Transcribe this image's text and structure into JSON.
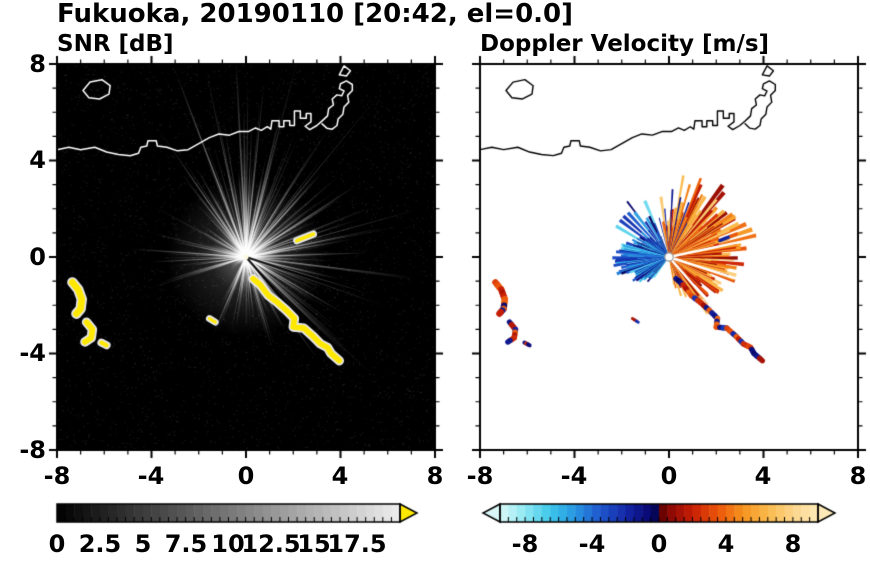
{
  "title": "Fukuoka, 20190110 [20:42, el=0.0]",
  "chart_data": [
    {
      "type": "heatmap",
      "subtype": "radar_ppi",
      "title": "SNR [dB]",
      "xlim": [
        -8,
        8
      ],
      "ylim": [
        -8,
        8
      ],
      "xtick_values": [
        -8,
        -4,
        0,
        4,
        8
      ],
      "ytick_values": [
        8,
        4,
        0,
        -4,
        -8
      ],
      "xtick_labels": [
        "-8",
        "-4",
        "0",
        "4",
        "8"
      ],
      "ytick_labels": [
        "8",
        "4",
        "0",
        "-4",
        "-8"
      ],
      "minor_tick_step": 1,
      "grid": false,
      "background_color": "#000000",
      "radar_center": [
        0,
        0
      ],
      "colorbar": {
        "orientation": "horizontal",
        "range": [
          0,
          20
        ],
        "segment_step": 0.5,
        "tick_values": [
          0,
          2.5,
          5,
          7.5,
          10,
          12.5,
          15,
          17.5
        ],
        "tick_labels": [
          "0",
          "2.5",
          "5",
          "7.5",
          "10",
          "12.5",
          "15",
          "17.5"
        ],
        "colormap": "grayscale",
        "gray_max_level": 238,
        "over_arrow_color": "#ffe800"
      },
      "fan": {
        "bright_sector_deg": [
          -70,
          130
        ],
        "weak_sector_deg": [
          200,
          240
        ],
        "max_radius": 8,
        "shadow_ray_angles_deg": [
          -49,
          -18
        ],
        "fixed_rays": [
          [
            176,
            4.8
          ],
          [
            183,
            4.0
          ],
          [
            168,
            3.2
          ],
          [
            150,
            2.4
          ],
          [
            2,
            5.2
          ],
          [
            12,
            4.4
          ],
          [
            33,
            5.6
          ],
          [
            48,
            4.8
          ],
          [
            75,
            4.4
          ],
          [
            95,
            3.8
          ],
          [
            118,
            3.0
          ],
          [
            -30,
            4.6
          ],
          [
            -55,
            5.2
          ],
          [
            -62,
            3.6
          ],
          [
            286,
            4.0
          ]
        ],
        "strong_echo_color": "#ffe800",
        "echo_halo_color": "#e6e6e6"
      }
    },
    {
      "type": "heatmap",
      "subtype": "radar_ppi",
      "title": "Doppler Velocity [m/s]",
      "xlim": [
        -8,
        8
      ],
      "ylim": [
        -8,
        8
      ],
      "xtick_values": [
        -8,
        -4,
        0,
        4,
        8
      ],
      "ytick_values": [
        8,
        4,
        0,
        -4,
        -8
      ],
      "xtick_labels": [
        "-8",
        "-4",
        "0",
        "4",
        "8"
      ],
      "minor_tick_step": 1,
      "grid": false,
      "background_color": "#ffffff",
      "radar_center": [
        0,
        0
      ],
      "colorbar": {
        "orientation": "horizontal",
        "range": [
          -9.5,
          9.5
        ],
        "segment_step": 0.5,
        "tick_values": [
          -8,
          -4,
          0,
          4,
          8
        ],
        "tick_labels": [
          "-8",
          "-4",
          "0",
          "4",
          "8"
        ],
        "colormap_stops": [
          [
            -9.5,
            "#d9f7f7"
          ],
          [
            -8.0,
            "#8fe8f2"
          ],
          [
            -6.5,
            "#3cc6ea"
          ],
          [
            -5.0,
            "#2896e2"
          ],
          [
            -3.5,
            "#1e55cc"
          ],
          [
            -2.0,
            "#1428a8"
          ],
          [
            -0.75,
            "#0a0a78"
          ],
          [
            -0.05,
            "#05054d"
          ],
          [
            0.05,
            "#5c0000"
          ],
          [
            0.75,
            "#8f0a05"
          ],
          [
            2.0,
            "#c81e05"
          ],
          [
            3.5,
            "#eb550a"
          ],
          [
            5.0,
            "#f5921e"
          ],
          [
            6.5,
            "#fab94b"
          ],
          [
            8.0,
            "#fcd58a"
          ],
          [
            9.5,
            "#fdeab8"
          ]
        ]
      },
      "fan": {
        "warm_sector_deg": [
          -80,
          102
        ],
        "cool_sector_deg": [
          112,
          235
        ],
        "gap_sector_deg": [
          236,
          279
        ],
        "navy_spike_angles_deg": [
          62,
          70,
          79,
          87,
          95,
          104,
          118,
          127
        ],
        "warm_spikes": [
          [
            62,
            3.0
          ],
          [
            68,
            3.6
          ],
          [
            74,
            3.2
          ],
          [
            80,
            3.5
          ],
          [
            45,
            2.8
          ],
          [
            -50,
            2.6
          ],
          [
            -56,
            2.9
          ],
          [
            10,
            3.1
          ]
        ],
        "white_ray_angles_deg": [
          -49,
          -18,
          12
        ],
        "max_radius": 3.8
      }
    }
  ],
  "geometry": {
    "coastlines": [
      [
        [
          -6.9,
          6.9
        ],
        [
          -6.6,
          7.25
        ],
        [
          -6.1,
          7.35
        ],
        [
          -5.75,
          7.1
        ],
        [
          -5.8,
          6.75
        ],
        [
          -6.2,
          6.55
        ],
        [
          -6.65,
          6.6
        ],
        [
          -6.9,
          6.9
        ]
      ],
      [
        [
          -8,
          4.45
        ],
        [
          -7.5,
          4.55
        ],
        [
          -7.0,
          4.45
        ],
        [
          -6.4,
          4.55
        ],
        [
          -5.9,
          4.35
        ],
        [
          -5.4,
          4.25
        ],
        [
          -4.9,
          4.2
        ],
        [
          -4.55,
          4.3
        ],
        [
          -4.45,
          4.55
        ],
        [
          -4.2,
          4.6
        ],
        [
          -4.15,
          4.82
        ],
        [
          -3.8,
          4.82
        ],
        [
          -3.75,
          4.6
        ],
        [
          -3.35,
          4.55
        ],
        [
          -2.9,
          4.4
        ],
        [
          -2.45,
          4.45
        ],
        [
          -2.0,
          4.7
        ],
        [
          -1.55,
          4.95
        ],
        [
          -1.15,
          5.1
        ],
        [
          -0.7,
          5.05
        ],
        [
          -0.3,
          5.2
        ],
        [
          0.1,
          5.2
        ],
        [
          0.4,
          5.35
        ],
        [
          0.65,
          5.25
        ],
        [
          0.9,
          5.4
        ],
        [
          1.05,
          5.3
        ],
        [
          1.1,
          5.65
        ],
        [
          1.4,
          5.65
        ],
        [
          1.4,
          5.4
        ],
        [
          1.6,
          5.4
        ],
        [
          1.6,
          5.65
        ],
        [
          1.85,
          5.65
        ],
        [
          1.85,
          5.45
        ],
        [
          2.05,
          5.45
        ],
        [
          2.05,
          6.05
        ],
        [
          2.3,
          6.05
        ],
        [
          2.3,
          5.75
        ],
        [
          2.55,
          5.75
        ],
        [
          2.55,
          5.95
        ],
        [
          2.75,
          5.95
        ],
        [
          2.75,
          5.6
        ],
        [
          2.5,
          5.42
        ],
        [
          2.7,
          5.28
        ],
        [
          3.0,
          5.45
        ],
        [
          3.2,
          5.62
        ],
        [
          3.45,
          5.85
        ],
        [
          3.5,
          6.15
        ],
        [
          3.7,
          6.3
        ],
        [
          3.65,
          6.55
        ],
        [
          3.85,
          6.72
        ],
        [
          4.05,
          6.68
        ],
        [
          4.15,
          6.88
        ],
        [
          3.95,
          6.98
        ],
        [
          4.0,
          7.18
        ],
        [
          4.25,
          7.3
        ],
        [
          4.5,
          7.15
        ],
        [
          4.5,
          6.9
        ],
        [
          4.3,
          6.7
        ],
        [
          4.35,
          6.42
        ],
        [
          4.15,
          6.22
        ],
        [
          4.1,
          5.92
        ],
        [
          3.9,
          5.72
        ],
        [
          3.85,
          5.45
        ],
        [
          3.65,
          5.3
        ],
        [
          3.42,
          5.34
        ],
        [
          3.22,
          5.52
        ]
      ],
      [
        [
          3.95,
          7.55
        ],
        [
          4.15,
          7.92
        ],
        [
          4.42,
          7.72
        ],
        [
          4.25,
          7.5
        ],
        [
          3.95,
          7.55
        ]
      ]
    ],
    "echo_bands": [
      {
        "points": [
          [
            -7.35,
            -1.05
          ],
          [
            -7.1,
            -1.35
          ],
          [
            -6.95,
            -1.75
          ],
          [
            -7.0,
            -2.15
          ],
          [
            -7.18,
            -2.35
          ]
        ],
        "width": 0.28
      },
      {
        "points": [
          [
            -6.75,
            -2.7
          ],
          [
            -6.5,
            -3.0
          ],
          [
            -6.55,
            -3.35
          ],
          [
            -6.82,
            -3.52
          ]
        ],
        "width": 0.24
      },
      {
        "points": [
          [
            -6.12,
            -3.55
          ],
          [
            -5.9,
            -3.66
          ]
        ],
        "width": 0.18
      },
      {
        "points": [
          [
            0.3,
            -0.9
          ],
          [
            0.6,
            -1.15
          ],
          [
            0.95,
            -1.6
          ],
          [
            1.35,
            -1.9
          ],
          [
            1.7,
            -2.2
          ],
          [
            2.05,
            -2.55
          ],
          [
            2.0,
            -2.9
          ],
          [
            2.45,
            -2.95
          ],
          [
            2.85,
            -3.3
          ],
          [
            3.15,
            -3.6
          ],
          [
            3.45,
            -3.75
          ],
          [
            3.6,
            -4.0
          ],
          [
            3.95,
            -4.3
          ]
        ],
        "width": 0.24
      },
      {
        "points": [
          [
            2.15,
            0.68
          ],
          [
            2.85,
            0.95
          ]
        ],
        "width": 0.15
      },
      {
        "points": [
          [
            -1.55,
            -2.55
          ],
          [
            -1.3,
            -2.7
          ]
        ],
        "width": 0.13
      }
    ]
  }
}
